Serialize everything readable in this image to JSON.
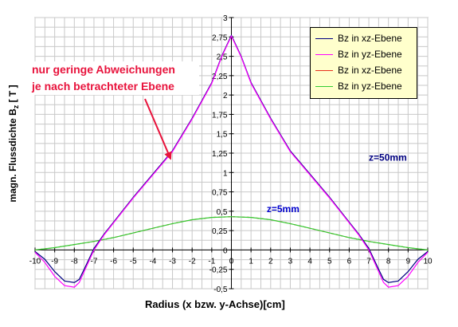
{
  "chart_data": {
    "type": "line",
    "xlabel": "Radius (x bzw. y-Achse)[cm]",
    "ylabel_main": "magn. Flussdichte B",
    "ylabel_sub": "z",
    "ylabel_unit": " [ T ]",
    "xlim": [
      -10,
      10
    ],
    "ylim": [
      -0.5,
      3
    ],
    "x_ticks": [
      -10,
      -9,
      -8,
      -7,
      -6,
      -5,
      -4,
      -3,
      -2,
      -1,
      0,
      1,
      2,
      3,
      4,
      5,
      6,
      7,
      8,
      9,
      10
    ],
    "x_tick_labels": [
      "-10",
      "-9",
      "-8",
      "-7",
      "-6",
      "-5",
      "-4",
      "-3",
      "-2",
      "-1",
      "0",
      "1",
      "2",
      "3",
      "4",
      "5",
      "6",
      "7",
      "8",
      "9",
      "10"
    ],
    "y_ticks": [
      -0.5,
      -0.25,
      0,
      0.25,
      0.5,
      0.75,
      1,
      1.25,
      1.5,
      1.75,
      2,
      2.25,
      2.5,
      2.75,
      3
    ],
    "y_tick_labels": [
      "-0,5",
      "-0,25",
      "0",
      "0,25",
      "0,5",
      "0,75",
      "1",
      "1,25",
      "1,5",
      "1,75",
      "2",
      "2,25",
      "2,5",
      "2,75",
      "3"
    ],
    "grid": true,
    "legend_position": "top-right",
    "series": [
      {
        "name": "Bz in xz-Ebene",
        "color": "#000080",
        "x": [
          -10,
          -9.5,
          -9,
          -8.5,
          -8,
          -7.75,
          -7.5,
          -7,
          -6.5,
          -6,
          -5,
          -4,
          -3,
          -2,
          -1,
          -0.5,
          0,
          0.5,
          1,
          2,
          3,
          4,
          5,
          6,
          6.5,
          7,
          7.5,
          7.75,
          8,
          8.5,
          9,
          9.5,
          10
        ],
        "y": [
          -0.02,
          -0.12,
          -0.28,
          -0.4,
          -0.42,
          -0.38,
          -0.25,
          0.02,
          0.2,
          0.36,
          0.68,
          0.98,
          1.28,
          1.7,
          2.16,
          2.5,
          2.77,
          2.5,
          2.16,
          1.7,
          1.28,
          0.98,
          0.68,
          0.36,
          0.2,
          0.02,
          -0.25,
          -0.38,
          -0.42,
          -0.4,
          -0.28,
          -0.12,
          -0.02
        ]
      },
      {
        "name": "Bz in yz-Ebene",
        "color": "#ff00ff",
        "x": [
          -10,
          -9.5,
          -9,
          -8.5,
          -8,
          -7.75,
          -7.5,
          -7,
          -6.5,
          -6,
          -5,
          -4,
          -3,
          -2,
          -1,
          -0.5,
          0,
          0.5,
          1,
          2,
          3,
          4,
          5,
          6,
          6.5,
          7,
          7.5,
          7.75,
          8,
          8.5,
          9,
          9.5,
          10
        ],
        "y": [
          -0.03,
          -0.16,
          -0.34,
          -0.46,
          -0.48,
          -0.42,
          -0.28,
          0.0,
          0.19,
          0.35,
          0.67,
          0.97,
          1.27,
          1.69,
          2.15,
          2.49,
          2.76,
          2.49,
          2.15,
          1.69,
          1.27,
          0.97,
          0.67,
          0.35,
          0.19,
          0.0,
          -0.28,
          -0.42,
          -0.48,
          -0.46,
          -0.34,
          -0.16,
          -0.03
        ]
      },
      {
        "name": "Bz in xz-Ebene",
        "color": "#e8301c",
        "x": [
          -10,
          -9,
          -8,
          -7,
          -6,
          -5,
          -4,
          -3,
          -2,
          -1,
          0,
          1,
          2,
          3,
          4,
          5,
          6,
          7,
          8,
          9,
          10
        ],
        "y": [
          0.0,
          0.03,
          0.07,
          0.11,
          0.16,
          0.22,
          0.28,
          0.34,
          0.39,
          0.42,
          0.43,
          0.42,
          0.39,
          0.34,
          0.28,
          0.22,
          0.16,
          0.11,
          0.07,
          0.03,
          0.0
        ]
      },
      {
        "name": "Bz in yz-Ebene",
        "color": "#33cc33",
        "x": [
          -10,
          -9,
          -8,
          -7,
          -6,
          -5,
          -4,
          -3,
          -2,
          -1,
          0,
          1,
          2,
          3,
          4,
          5,
          6,
          7,
          8,
          9,
          10
        ],
        "y": [
          0.0,
          0.03,
          0.07,
          0.11,
          0.16,
          0.22,
          0.28,
          0.34,
          0.39,
          0.42,
          0.43,
          0.42,
          0.39,
          0.34,
          0.28,
          0.22,
          0.16,
          0.11,
          0.07,
          0.03,
          0.0
        ]
      }
    ],
    "annotations": [
      {
        "text": "z=50mm",
        "x": 7.0,
        "y": 1.15,
        "color": "#000080"
      },
      {
        "text": "z=5mm",
        "x": 1.8,
        "y": 0.49,
        "color": "#0000cc"
      }
    ],
    "callout": {
      "lines": [
        "nur geringe Abweichungen",
        "je nach betrachteter Ebene"
      ],
      "color": "#e8133c",
      "arrow_target": {
        "x": -3.1,
        "y": 1.18
      }
    }
  }
}
